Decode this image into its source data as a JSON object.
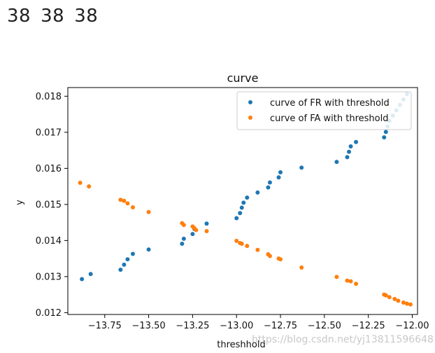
{
  "header": {
    "numbers": [
      "38",
      "38",
      "38"
    ]
  },
  "watermark": "https://blog.csdn.net/yj13811596648",
  "chart_data": {
    "type": "scatter",
    "title": "curve",
    "xlabel": "threshhold",
    "ylabel": "y",
    "xlim": [
      -13.96,
      -11.97
    ],
    "ylim": [
      0.01195,
      0.01824
    ],
    "xticks": [
      -13.75,
      -13.5,
      -13.25,
      -13.0,
      -12.75,
      -12.5,
      -12.25,
      -12.0
    ],
    "xtick_labels": [
      "−13.75",
      "−13.50",
      "−13.25",
      "−13.00",
      "−12.75",
      "−12.50",
      "−12.25",
      "−12.00"
    ],
    "yticks": [
      0.012,
      0.013,
      0.014,
      0.015,
      0.016,
      0.017,
      0.018
    ],
    "ytick_labels": [
      "0.012",
      "0.013",
      "0.014",
      "0.015",
      "0.016",
      "0.017",
      "0.018"
    ],
    "grid": false,
    "legend_position": "top-right",
    "series": [
      {
        "name": "curve of FR with threshold",
        "color": "#1f77b4",
        "x": [
          -13.88,
          -13.83,
          -13.66,
          -13.64,
          -13.62,
          -13.59,
          -13.5,
          -13.31,
          -13.3,
          -13.25,
          -13.24,
          -13.17,
          -13.0,
          -12.98,
          -12.97,
          -12.96,
          -12.94,
          -12.88,
          -12.82,
          -12.81,
          -12.76,
          -12.75,
          -12.63,
          -12.43,
          -12.37,
          -12.36,
          -12.35,
          -12.32,
          -12.16,
          -12.15,
          -12.14,
          -12.13,
          -12.11,
          -12.09,
          -12.07,
          -12.05,
          -12.03
        ],
        "y": [
          0.01293,
          0.01307,
          0.01319,
          0.01333,
          0.01348,
          0.01363,
          0.01375,
          0.01391,
          0.01405,
          0.01418,
          0.01432,
          0.01447,
          0.01462,
          0.01476,
          0.01491,
          0.01505,
          0.01519,
          0.01533,
          0.01547,
          0.01561,
          0.01575,
          0.01589,
          0.01602,
          0.01618,
          0.01631,
          0.01646,
          0.01661,
          0.01673,
          0.01686,
          0.01701,
          0.01716,
          0.01731,
          0.01746,
          0.01761,
          0.01776,
          0.01791,
          0.01806
        ]
      },
      {
        "name": "curve of FA with threshold",
        "color": "#ff7f0e",
        "x": [
          -13.89,
          -13.84,
          -13.66,
          -13.64,
          -13.62,
          -13.59,
          -13.5,
          -13.31,
          -13.3,
          -13.25,
          -13.24,
          -13.23,
          -13.17,
          -13.0,
          -12.98,
          -12.97,
          -12.94,
          -12.88,
          -12.82,
          -12.81,
          -12.76,
          -12.75,
          -12.63,
          -12.43,
          -12.37,
          -12.35,
          -12.32,
          -12.16,
          -12.15,
          -12.13,
          -12.1,
          -12.08,
          -12.05,
          -12.03,
          -12.01
        ],
        "y": [
          0.0156,
          0.0155,
          0.01513,
          0.0151,
          0.01503,
          0.01492,
          0.01479,
          0.01448,
          0.01443,
          0.01439,
          0.01434,
          0.01429,
          0.01426,
          0.01399,
          0.01393,
          0.01391,
          0.01385,
          0.01374,
          0.01362,
          0.01357,
          0.0135,
          0.01348,
          0.01325,
          0.01299,
          0.01289,
          0.01287,
          0.0128,
          0.0125,
          0.01248,
          0.01243,
          0.01238,
          0.01233,
          0.01228,
          0.01225,
          0.01223
        ]
      }
    ]
  }
}
